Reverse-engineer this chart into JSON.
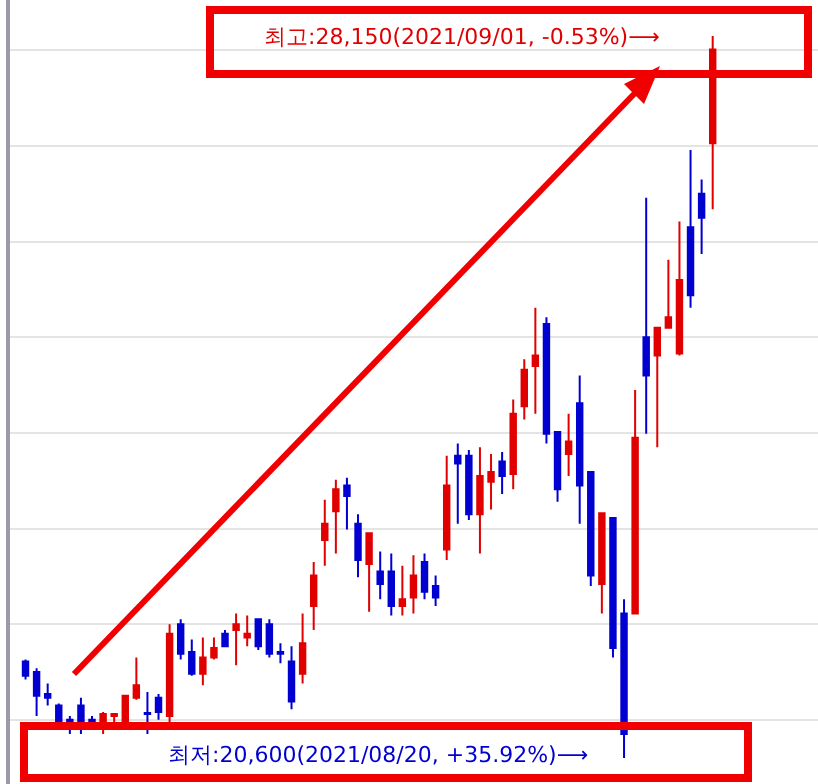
{
  "chart_data": {
    "type": "candlestick",
    "categories": [
      null,
      null,
      null,
      null,
      null,
      null,
      null,
      null,
      null,
      null,
      null,
      null,
      null,
      null,
      null,
      null,
      null,
      null,
      null,
      null,
      null,
      null,
      null,
      null,
      null,
      null,
      null,
      null,
      null,
      null,
      null,
      null,
      null,
      null,
      null,
      null,
      null,
      null,
      null,
      null,
      null,
      null,
      null,
      null,
      null,
      null,
      null,
      null,
      null,
      null,
      null,
      null,
      null,
      null,
      null,
      null,
      null,
      null,
      null,
      null,
      null,
      null,
      null
    ],
    "ohlc": [
      [
        21610,
        21630,
        21420,
        21460
      ],
      [
        21500,
        21540,
        21040,
        21250
      ],
      [
        21270,
        21380,
        21150,
        21230
      ],
      [
        21150,
        21170,
        20960,
        20980
      ],
      [
        21000,
        21040,
        20850,
        20940
      ],
      [
        21150,
        21230,
        20850,
        20940
      ],
      [
        21000,
        21040,
        20940,
        20940
      ],
      [
        20940,
        21080,
        20850,
        21060
      ],
      [
        21040,
        21060,
        20940,
        21060
      ],
      [
        20980,
        21250,
        20940,
        21250
      ],
      [
        21230,
        21650,
        21210,
        21360
      ],
      [
        21070,
        21290,
        20850,
        21060
      ],
      [
        21230,
        21270,
        21000,
        21080
      ],
      [
        21040,
        22000,
        20940,
        21900
      ],
      [
        22000,
        22050,
        21630,
        21690
      ],
      [
        21710,
        21840,
        21460,
        21480
      ],
      [
        21480,
        21860,
        21360,
        21650
      ],
      [
        21650,
        21860,
        21630,
        21750
      ],
      [
        21900,
        21940,
        21770,
        21770
      ],
      [
        21940,
        22110,
        21570,
        22000
      ],
      [
        21860,
        22090,
        21770,
        21900
      ],
      [
        22050,
        22050,
        21730,
        21770
      ],
      [
        22000,
        22050,
        21650,
        21690
      ],
      [
        21710,
        21800,
        21590,
        21690
      ],
      [
        21610,
        21770,
        21110,
        21190
      ],
      [
        21480,
        22110,
        21380,
        21800
      ],
      [
        22190,
        22650,
        21940,
        22510
      ],
      [
        22880,
        23300,
        22610,
        23050
      ],
      [
        23180,
        23510,
        22740,
        23410
      ],
      [
        23450,
        23530,
        22990,
        23340
      ],
      [
        23050,
        23150,
        22490,
        22670
      ],
      [
        22630,
        22950,
        22130,
        22950
      ],
      [
        22550,
        22760,
        22260,
        22420
      ],
      [
        22550,
        22740,
        22090,
        22190
      ],
      [
        22190,
        22610,
        22090,
        22260
      ],
      [
        22280,
        22720,
        22110,
        22510
      ],
      [
        22650,
        22740,
        22260,
        22340
      ],
      [
        22400,
        22510,
        22190,
        22280
      ],
      [
        22780,
        23760,
        22670,
        23450
      ],
      [
        23760,
        23890,
        23050,
        23680
      ],
      [
        23760,
        23820,
        23090,
        23150
      ],
      [
        23150,
        23850,
        22740,
        23550
      ],
      [
        23490,
        23780,
        23200,
        23590
      ],
      [
        23700,
        23800,
        23360,
        23550
      ],
      [
        23570,
        24350,
        23410,
        24200
      ],
      [
        24280,
        24770,
        24140,
        24660
      ],
      [
        24700,
        25310,
        24200,
        24810
      ],
      [
        25140,
        25210,
        23890,
        23990
      ],
      [
        24010,
        24010,
        23280,
        23410
      ],
      [
        23780,
        24200,
        23550,
        23910
      ],
      [
        24310,
        24600,
        23050,
        23450
      ],
      [
        23590,
        23590,
        22400,
        22510
      ],
      [
        22420,
        23160,
        22110,
        23160
      ],
      [
        23110,
        23110,
        21650,
        21750
      ],
      [
        22110,
        22260,
        20600,
        20850
      ],
      [
        22110,
        24450,
        22110,
        23950
      ],
      [
        25000,
        26460,
        23990,
        24600
      ],
      [
        24810,
        25100,
        23850,
        25100
      ],
      [
        25100,
        25810,
        25100,
        25210
      ],
      [
        24830,
        26210,
        24810,
        25600
      ],
      [
        26150,
        26960,
        25310,
        25440
      ],
      [
        26500,
        26650,
        25870,
        26250
      ],
      [
        27030,
        28150,
        26340,
        28010
      ]
    ],
    "yticks": [
      {
        "value": 21000,
        "label": null
      },
      {
        "value": 22000,
        "label": null
      },
      {
        "value": 23000,
        "label": null
      },
      {
        "value": 24000,
        "label": null
      },
      {
        "value": 25000,
        "label": null
      },
      {
        "value": 26000,
        "label": null
      },
      {
        "value": 27000,
        "label": null
      },
      {
        "value": 28000,
        "label": null
      }
    ],
    "grid": "y",
    "annotations": [
      "최고:28,150(2021/09/01, -0.53%)⟶",
      "최저:20,600(2021/08/20, +35.92%)⟶"
    ]
  }
}
